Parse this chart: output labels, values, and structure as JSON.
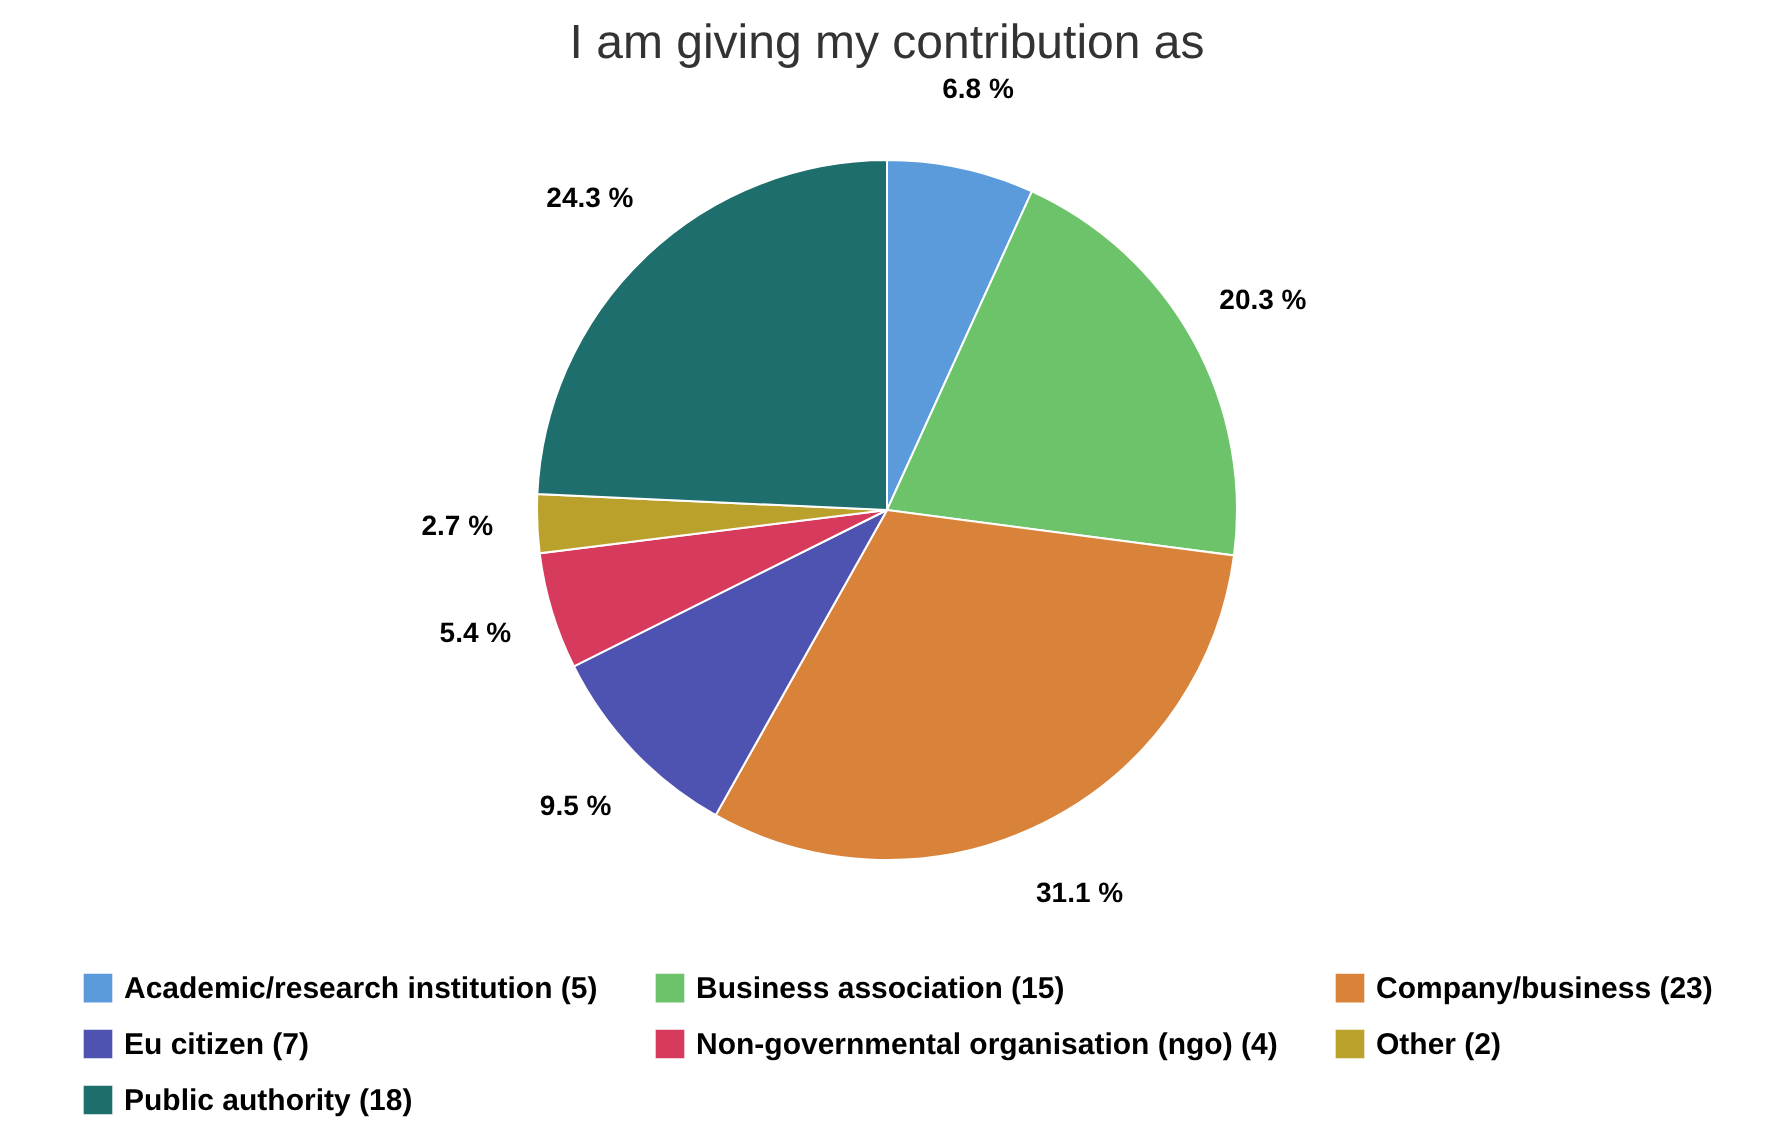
{
  "chart_data": {
    "type": "pie",
    "title": "I am giving my contribution as",
    "categories": [
      "Academic/research institution (5)",
      "Business association (15)",
      "Company/business (23)",
      "Eu citizen (7)",
      "Non-governmental organisation (ngo) (4)",
      "Other (2)",
      "Public authority (18)"
    ],
    "values": [
      6.8,
      20.3,
      31.1,
      9.5,
      5.4,
      2.7,
      24.3
    ],
    "value_labels": [
      "6.8 %",
      "20.3 %",
      "31.1 %",
      "9.5 %",
      "5.4 %",
      "2.7 %",
      "24.3 %"
    ],
    "colors": [
      "#5b9bdc",
      "#6cc36a",
      "#d9823a",
      "#4e52b0",
      "#d63a5c",
      "#b9a12c",
      "#1d6e6c"
    ],
    "legend": "bottom"
  }
}
